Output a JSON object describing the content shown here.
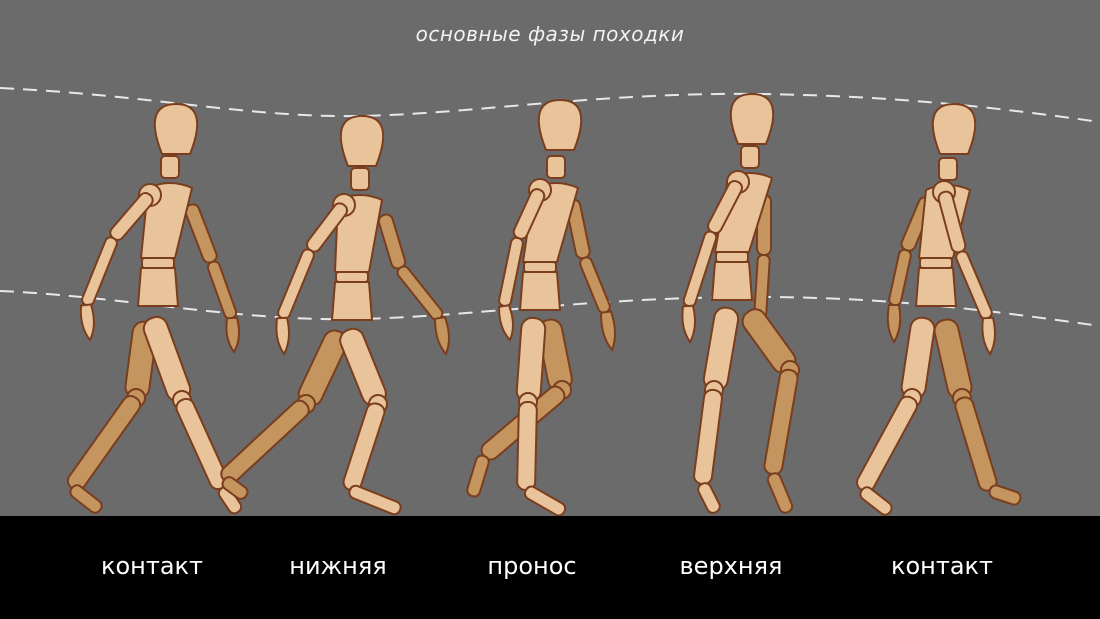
{
  "title": "основные фазы походки",
  "phases": [
    {
      "label": "контакт"
    },
    {
      "label": "нижняя"
    },
    {
      "label": "пронос"
    },
    {
      "label": "верхняя"
    },
    {
      "label": "контакт"
    }
  ],
  "colors": {
    "background": "#6b6b6b",
    "floor": "#000000",
    "body_light": "#e9c49a",
    "body_dark": "#c4955f",
    "outline": "#7a3d1e",
    "guide_line": "#e8e8e8",
    "text": "#ffffff"
  }
}
